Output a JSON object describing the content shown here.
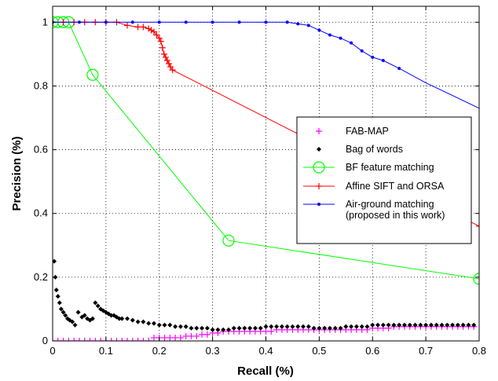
{
  "chart_data": {
    "type": "line",
    "title": "",
    "xlabel": "Recall (%)",
    "ylabel": "Precision (%)",
    "xlim": [
      0,
      0.8
    ],
    "ylim": [
      0,
      1.05
    ],
    "xticks": [
      0,
      0.1,
      0.2,
      0.3,
      0.4,
      0.5,
      0.6,
      0.7,
      0.8
    ],
    "xtick_labels": [
      "0",
      "0.1",
      "0.2",
      "0.3",
      "0.4",
      "0.5",
      "0.6",
      "0.7",
      "0.8"
    ],
    "yticks": [
      0,
      0.2,
      0.4,
      0.6,
      0.8,
      1
    ],
    "ytick_labels": [
      "0",
      "0.2",
      "0.4",
      "0.6",
      "0.8",
      "1"
    ],
    "grid": true,
    "legend_position": "right",
    "series": [
      {
        "name": "FAB-MAP",
        "color": "#ff00ff",
        "marker": "plus",
        "line": false,
        "x": [
          0.0,
          0.01,
          0.02,
          0.03,
          0.04,
          0.05,
          0.06,
          0.07,
          0.08,
          0.09,
          0.1,
          0.11,
          0.12,
          0.13,
          0.14,
          0.15,
          0.16,
          0.17,
          0.18,
          0.19,
          0.2,
          0.21,
          0.22,
          0.23,
          0.24,
          0.25,
          0.26,
          0.27,
          0.28,
          0.29,
          0.3,
          0.31,
          0.32,
          0.33,
          0.34,
          0.35,
          0.36,
          0.37,
          0.38,
          0.39,
          0.4,
          0.41,
          0.42,
          0.43,
          0.44,
          0.45,
          0.46,
          0.47,
          0.48,
          0.49,
          0.5,
          0.51,
          0.52,
          0.53,
          0.54,
          0.55,
          0.56,
          0.57,
          0.58,
          0.59,
          0.6,
          0.61,
          0.62,
          0.63,
          0.64,
          0.65,
          0.66,
          0.67,
          0.68,
          0.69,
          0.7,
          0.71,
          0.72,
          0.73,
          0.74,
          0.75,
          0.76,
          0.77,
          0.78,
          0.79
        ],
        "y": [
          0.0,
          0.0,
          0.0,
          0.0,
          0.0,
          0.0,
          0.0,
          0.0,
          0.0,
          0.0,
          0.0,
          0.0,
          0.0,
          0.0,
          0.0,
          0.0,
          0.0,
          0.0,
          0.0,
          0.01,
          0.01,
          0.01,
          0.01,
          0.01,
          0.01,
          0.015,
          0.015,
          0.015,
          0.02,
          0.02,
          0.025,
          0.025,
          0.03,
          0.03,
          0.03,
          0.03,
          0.03,
          0.03,
          0.03,
          0.03,
          0.03,
          0.03,
          0.035,
          0.035,
          0.035,
          0.035,
          0.035,
          0.035,
          0.035,
          0.035,
          0.035,
          0.035,
          0.035,
          0.035,
          0.035,
          0.035,
          0.035,
          0.035,
          0.035,
          0.035,
          0.04,
          0.04,
          0.04,
          0.04,
          0.045,
          0.045,
          0.045,
          0.045,
          0.045,
          0.045,
          0.045,
          0.045,
          0.045,
          0.045,
          0.045,
          0.045,
          0.045,
          0.045,
          0.045,
          0.045
        ]
      },
      {
        "name": "Bag of words",
        "color": "#000000",
        "marker": "diamond",
        "line": false,
        "x": [
          0.003,
          0.005,
          0.007,
          0.01,
          0.013,
          0.016,
          0.02,
          0.024,
          0.028,
          0.032,
          0.037,
          0.042,
          0.048,
          0.055,
          0.06,
          0.065,
          0.07,
          0.075,
          0.08,
          0.085,
          0.09,
          0.095,
          0.1,
          0.105,
          0.11,
          0.115,
          0.12,
          0.125,
          0.13,
          0.14,
          0.15,
          0.16,
          0.17,
          0.18,
          0.19,
          0.2,
          0.21,
          0.22,
          0.23,
          0.24,
          0.25,
          0.26,
          0.27,
          0.28,
          0.29,
          0.3,
          0.31,
          0.32,
          0.33,
          0.34,
          0.35,
          0.36,
          0.37,
          0.38,
          0.39,
          0.4,
          0.41,
          0.42,
          0.43,
          0.44,
          0.45,
          0.46,
          0.47,
          0.48,
          0.49,
          0.5,
          0.51,
          0.52,
          0.53,
          0.54,
          0.55,
          0.56,
          0.57,
          0.58,
          0.59,
          0.6,
          0.61,
          0.62,
          0.63,
          0.64,
          0.65,
          0.66,
          0.67,
          0.68,
          0.69,
          0.7,
          0.71,
          0.72,
          0.73,
          0.74,
          0.75,
          0.76,
          0.77,
          0.78,
          0.79
        ],
        "y": [
          0.25,
          0.2,
          0.16,
          0.14,
          0.12,
          0.1,
          0.09,
          0.08,
          0.07,
          0.065,
          0.06,
          0.05,
          0.09,
          0.075,
          0.08,
          0.07,
          0.065,
          0.07,
          0.12,
          0.11,
          0.1,
          0.095,
          0.09,
          0.085,
          0.08,
          0.08,
          0.075,
          0.07,
          0.07,
          0.07,
          0.065,
          0.06,
          0.06,
          0.055,
          0.055,
          0.05,
          0.05,
          0.05,
          0.045,
          0.045,
          0.045,
          0.04,
          0.04,
          0.04,
          0.04,
          0.035,
          0.035,
          0.035,
          0.035,
          0.04,
          0.04,
          0.04,
          0.04,
          0.04,
          0.04,
          0.045,
          0.045,
          0.045,
          0.045,
          0.045,
          0.045,
          0.045,
          0.045,
          0.045,
          0.04,
          0.04,
          0.04,
          0.04,
          0.04,
          0.04,
          0.045,
          0.045,
          0.045,
          0.045,
          0.045,
          0.05,
          0.05,
          0.05,
          0.05,
          0.05,
          0.05,
          0.05,
          0.05,
          0.05,
          0.05,
          0.05,
          0.05,
          0.05,
          0.05,
          0.05,
          0.05,
          0.05,
          0.05,
          0.05,
          0.05
        ]
      },
      {
        "name": "BF feature matching",
        "color": "#00ff00",
        "marker": "circle",
        "line": true,
        "x": [
          0.0,
          0.01,
          0.02,
          0.03,
          0.075,
          0.33,
          0.8
        ],
        "y": [
          1.0,
          1.0,
          1.0,
          1.0,
          0.835,
          0.315,
          0.195
        ]
      },
      {
        "name": "Affine SIFT and ORSA",
        "color": "#ff0000",
        "marker": "plus",
        "line": true,
        "x": [
          0.0,
          0.02,
          0.04,
          0.06,
          0.08,
          0.1,
          0.12,
          0.14,
          0.16,
          0.17,
          0.18,
          0.185,
          0.19,
          0.195,
          0.2,
          0.203,
          0.206,
          0.209,
          0.212,
          0.215,
          0.218,
          0.221,
          0.225,
          0.8
        ],
        "y": [
          1.0,
          1.0,
          1.0,
          1.0,
          1.0,
          1.0,
          1.0,
          0.99,
          0.985,
          0.985,
          0.98,
          0.975,
          0.97,
          0.96,
          0.95,
          0.94,
          0.92,
          0.9,
          0.89,
          0.88,
          0.87,
          0.86,
          0.85,
          0.36
        ]
      },
      {
        "name": "Air-ground matching\n(proposed in this work)",
        "color": "#0000ff",
        "marker": "dot",
        "line": true,
        "x": [
          0.0,
          0.05,
          0.1,
          0.15,
          0.2,
          0.25,
          0.3,
          0.35,
          0.4,
          0.44,
          0.46,
          0.48,
          0.5,
          0.52,
          0.54,
          0.56,
          0.58,
          0.6,
          0.62,
          0.65,
          0.7,
          0.75,
          0.8
        ],
        "y": [
          1.0,
          1.0,
          1.0,
          1.0,
          1.0,
          1.0,
          1.0,
          1.0,
          1.0,
          1.0,
          0.995,
          0.99,
          0.975,
          0.96,
          0.95,
          0.935,
          0.91,
          0.89,
          0.88,
          0.855,
          0.81,
          0.77,
          0.73
        ]
      }
    ]
  }
}
